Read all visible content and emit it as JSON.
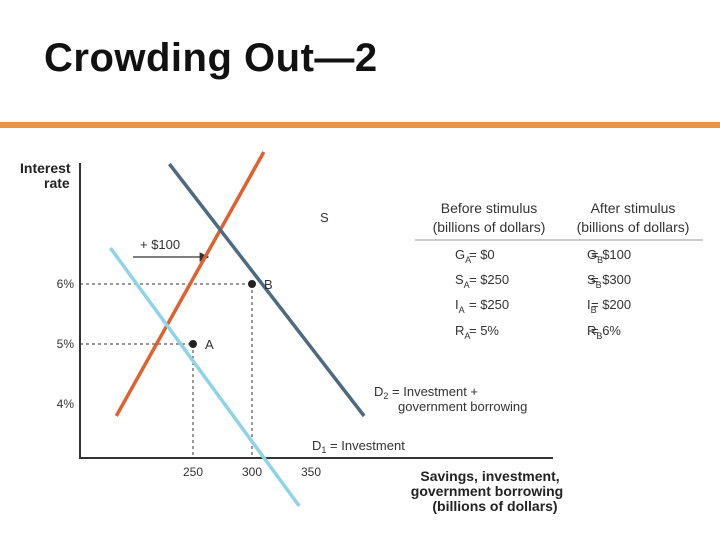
{
  "slide": {
    "title": "Crowding Out—2"
  },
  "colors": {
    "accent_rule": "#e8974a",
    "supply": "#e0612e",
    "d1": "#8fd3e8",
    "d2": "#4d6b80"
  },
  "chart_data": {
    "type": "line",
    "title": "",
    "ylabel_line1": "Interest",
    "ylabel_line2": "rate",
    "xlabel_lines": [
      "Savings, investment,",
      "government borrowing",
      "(billions of dollars)"
    ],
    "x_ticks": [
      {
        "value": 250,
        "label": "250"
      },
      {
        "value": 300,
        "label": "300"
      },
      {
        "value": 350,
        "label": "350"
      }
    ],
    "y_ticks": [
      {
        "value": 4,
        "label": "4%"
      },
      {
        "value": 5,
        "label": "5%"
      },
      {
        "value": 6,
        "label": "6%"
      }
    ],
    "series": [
      {
        "name": "S",
        "x": [
          185,
          310
        ],
        "y": [
          3.8,
          8.2
        ]
      },
      {
        "name": "D1 = Investment",
        "x": [
          180,
          340
        ],
        "y": [
          6.6,
          2.3
        ]
      },
      {
        "name": "D2 = Investment + government borrowing",
        "x": [
          230,
          395
        ],
        "y": [
          8.0,
          3.8
        ]
      }
    ],
    "points": [
      {
        "label": "A",
        "x": 250,
        "y": 5
      },
      {
        "label": "B",
        "x": 300,
        "y": 6
      }
    ],
    "shift_annotation": "+ $100",
    "d1_label": {
      "main": "D",
      "sub": "1",
      "rest": " = Investment"
    },
    "d2_label": {
      "main": "D",
      "sub": "2",
      "rest": " = Investment +",
      "line2": "government borrowing"
    },
    "s_label": "S",
    "table": {
      "headers": [
        {
          "line1": "Before stimulus",
          "line2": "(billions of dollars)"
        },
        {
          "line1": "After stimulus",
          "line2": "(billions of dollars)"
        }
      ],
      "rows": [
        {
          "before": {
            "v": "G",
            "s": "A",
            "val": "= $0"
          },
          "after": {
            "v": "G",
            "s": "B",
            "val": "= $100"
          }
        },
        {
          "before": {
            "v": "S",
            "s": "A",
            "val": "= $250"
          },
          "after": {
            "v": "S",
            "s": "B",
            "val": "= $300"
          }
        },
        {
          "before": {
            "v": "I",
            "s": "A",
            "val": "= $250"
          },
          "after": {
            "v": "I",
            "s": "B",
            "val": "= $200"
          }
        },
        {
          "before": {
            "v": "R",
            "s": "A",
            "val": "= 5%"
          },
          "after": {
            "v": "R",
            "s": "B",
            "val": "= 6%"
          }
        }
      ]
    }
  }
}
